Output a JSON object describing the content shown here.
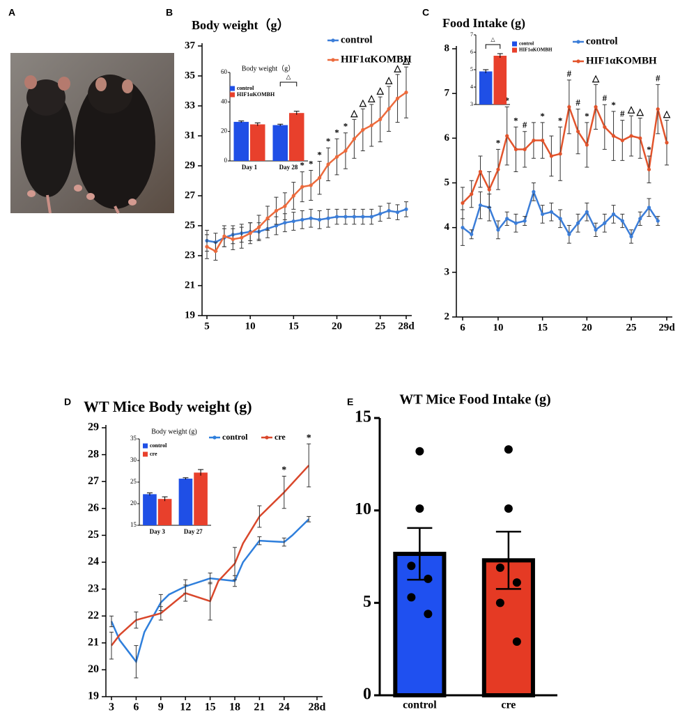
{
  "panel_a": {
    "label": "A"
  },
  "chart_data": [
    {
      "type": "line",
      "panel": "B",
      "title": "Body weight（g）",
      "markers": true,
      "x": [
        5,
        6,
        7,
        8,
        9,
        10,
        11,
        12,
        13,
        14,
        15,
        16,
        17,
        18,
        19,
        20,
        21,
        22,
        23,
        24,
        25,
        26,
        27,
        28
      ],
      "xlim": [
        5,
        28
      ],
      "xticks": [
        5,
        10,
        15,
        20,
        25,
        {
          "value": 28,
          "label": "28d"
        }
      ],
      "ylim": [
        19,
        37
      ],
      "yticks": [
        19,
        21,
        23,
        25,
        27,
        29,
        31,
        33,
        35,
        37
      ],
      "series": [
        {
          "name": "control",
          "color": "#3b7dd8",
          "values": [
            24.0,
            23.9,
            24.2,
            24.4,
            24.5,
            24.6,
            24.6,
            24.8,
            25.0,
            25.2,
            25.3,
            25.4,
            25.5,
            25.4,
            25.5,
            25.6,
            25.6,
            25.6,
            25.6,
            25.6,
            25.8,
            26.0,
            25.9,
            26.1
          ],
          "errors": [
            0.7,
            0.6,
            0.6,
            0.6,
            0.6,
            0.6,
            0.6,
            0.6,
            0.6,
            0.6,
            0.6,
            0.6,
            0.6,
            0.6,
            0.6,
            0.5,
            0.5,
            0.5,
            0.5,
            0.5,
            0.5,
            0.5,
            0.5,
            0.5
          ]
        },
        {
          "name": "HIF1αKOMBH",
          "color": "#ec6a3c",
          "values": [
            23.6,
            23.3,
            24.3,
            24.1,
            24.2,
            24.5,
            24.9,
            25.5,
            26.0,
            26.3,
            27.0,
            27.6,
            27.7,
            28.2,
            29.1,
            29.6,
            30.0,
            30.8,
            31.4,
            31.7,
            32.1,
            32.8,
            33.5,
            33.9
          ],
          "errors": [
            0.8,
            0.6,
            0.7,
            0.7,
            0.7,
            0.7,
            0.8,
            0.8,
            0.9,
            0.9,
            0.9,
            1.0,
            1.0,
            1.1,
            1.1,
            1.2,
            1.2,
            1.3,
            1.4,
            1.4,
            1.5,
            1.5,
            1.6,
            1.7
          ]
        }
      ],
      "annotations": [
        {
          "x": 16,
          "text": "*",
          "series": 1
        },
        {
          "x": 17,
          "text": "*",
          "series": 1
        },
        {
          "x": 18,
          "text": "*",
          "series": 1
        },
        {
          "x": 19,
          "text": "*",
          "series": 1
        },
        {
          "x": 20,
          "text": "*",
          "series": 1
        },
        {
          "x": 21,
          "text": "*",
          "series": 1
        },
        {
          "x": 22,
          "text": "△",
          "series": 1
        },
        {
          "x": 23,
          "text": "△",
          "series": 1
        },
        {
          "x": 24,
          "text": "△",
          "series": 1
        },
        {
          "x": 25,
          "text": "△",
          "series": 1
        },
        {
          "x": 26,
          "text": "△",
          "series": 1
        },
        {
          "x": 27,
          "text": "△",
          "series": 1
        },
        {
          "x": 28,
          "text": "△",
          "series": 1
        }
      ],
      "inset": {
        "type": "bar",
        "title": "Body weight（g）",
        "categories": [
          "Day 1",
          "Day 28"
        ],
        "ylim": [
          0,
          60
        ],
        "yticks": [
          0,
          20,
          40,
          60
        ],
        "series": [
          {
            "name": "control",
            "color": "#1f4fe6",
            "values": [
              26.5,
              24.3
            ],
            "errors": [
              0.6,
              0.6
            ]
          },
          {
            "name": "HIF1αKOMBH",
            "color": "#e8402c",
            "values": [
              24.8,
              32.5
            ],
            "errors": [
              1.0,
              1.2
            ]
          }
        ],
        "annotations": [
          {
            "text": "△",
            "category": 1
          }
        ]
      }
    },
    {
      "type": "line",
      "panel": "C",
      "title": "Food Intake (g)",
      "markers": true,
      "x": [
        6,
        7,
        8,
        9,
        10,
        11,
        12,
        13,
        14,
        15,
        16,
        17,
        18,
        19,
        20,
        21,
        22,
        23,
        24,
        25,
        26,
        27,
        28,
        29
      ],
      "xlim": [
        6,
        29
      ],
      "xticks": [
        6,
        10,
        15,
        20,
        25,
        {
          "value": 29,
          "label": "29d"
        }
      ],
      "ylim": [
        2,
        8
      ],
      "yticks": [
        2,
        3,
        4,
        5,
        6,
        7,
        8
      ],
      "series": [
        {
          "name": "control",
          "color": "#3b7dd8",
          "values": [
            4.0,
            3.85,
            4.5,
            4.45,
            3.95,
            4.2,
            4.1,
            4.15,
            4.8,
            4.3,
            4.35,
            4.2,
            3.85,
            4.1,
            4.35,
            3.95,
            4.1,
            4.3,
            4.15,
            3.8,
            4.2,
            4.45,
            4.15,
            null
          ],
          "errors": [
            0.4,
            0.1,
            0.3,
            0.3,
            0.2,
            0.15,
            0.2,
            0.1,
            0.2,
            0.2,
            0.2,
            0.2,
            0.2,
            0.2,
            0.2,
            0.15,
            0.2,
            0.2,
            0.15,
            0.15,
            0.15,
            0.2,
            0.1,
            null
          ]
        },
        {
          "name": "HIF1αKOMBH",
          "color": "#e2542c",
          "values": [
            4.55,
            4.75,
            5.25,
            4.85,
            5.3,
            6.05,
            5.75,
            5.75,
            5.95,
            5.95,
            5.6,
            5.65,
            6.7,
            6.15,
            5.85,
            6.7,
            6.25,
            6.05,
            5.95,
            6.05,
            6.0,
            5.3,
            6.65,
            5.9
          ],
          "errors": [
            0.35,
            0.3,
            0.35,
            0.4,
            0.45,
            0.65,
            0.5,
            0.4,
            0.4,
            0.4,
            0.45,
            0.6,
            0.6,
            0.5,
            0.5,
            0.5,
            0.5,
            0.55,
            0.45,
            0.45,
            0.45,
            0.3,
            0.55,
            0.5
          ]
        }
      ],
      "annotations": [
        {
          "x": 10,
          "text": "*",
          "series": 1
        },
        {
          "x": 11,
          "text": "*",
          "series": 1
        },
        {
          "x": 12,
          "text": "*",
          "series": 1
        },
        {
          "x": 13,
          "text": "#",
          "series": 1
        },
        {
          "x": 15,
          "text": "*",
          "series": 1
        },
        {
          "x": 17,
          "text": "*",
          "series": 1
        },
        {
          "x": 18,
          "text": "#",
          "series": 1
        },
        {
          "x": 19,
          "text": "#",
          "series": 1
        },
        {
          "x": 20,
          "text": "*",
          "series": 1
        },
        {
          "x": 21,
          "text": "△",
          "series": 1
        },
        {
          "x": 22,
          "text": "#",
          "series": 1
        },
        {
          "x": 23,
          "text": "*",
          "series": 1
        },
        {
          "x": 24,
          "text": "#",
          "series": 1
        },
        {
          "x": 25,
          "text": "△",
          "series": 1
        },
        {
          "x": 26,
          "text": "△",
          "series": 1
        },
        {
          "x": 27,
          "text": "*",
          "series": 1
        },
        {
          "x": 28,
          "text": "#",
          "series": 1
        },
        {
          "x": 29,
          "text": "△",
          "series": 1
        }
      ],
      "inset": {
        "type": "bar",
        "ylim": [
          3,
          7
        ],
        "yticks": [
          3,
          4,
          5,
          6,
          7
        ],
        "series": [
          {
            "name": "control",
            "color": "#1f4fe6",
            "values": [
              4.9
            ],
            "errors": [
              0.1
            ]
          },
          {
            "name": "HIF1αKOMBH",
            "color": "#e8402c",
            "values": [
              5.8
            ],
            "errors": [
              0.12
            ]
          }
        ],
        "annotations": [
          {
            "text": "△",
            "category": 0
          }
        ]
      }
    },
    {
      "type": "line",
      "panel": "D",
      "title": "WT Mice Body weight (g)",
      "markers": false,
      "xlim": [
        3,
        28
      ],
      "xticks": [
        3,
        6,
        9,
        12,
        15,
        18,
        21,
        24,
        {
          "value": 28,
          "label": "28d"
        }
      ],
      "ylim": [
        19,
        29
      ],
      "yticks": [
        19,
        20,
        21,
        22,
        23,
        24,
        25,
        26,
        27,
        28,
        29
      ],
      "series": [
        {
          "name": "control",
          "color": "#2f7fdc",
          "x": [
            3,
            4,
            6,
            7,
            9,
            10,
            12,
            15,
            18,
            19,
            21,
            24,
            25,
            27
          ],
          "values": [
            21.8,
            21.1,
            20.3,
            21.4,
            22.5,
            22.8,
            23.1,
            23.4,
            23.3,
            24.0,
            24.8,
            24.75,
            25.0,
            25.6
          ],
          "errors": [
            0.2,
            null,
            0.6,
            null,
            0.3,
            null,
            0.25,
            0.2,
            0.2,
            null,
            0.15,
            0.15,
            null,
            0.1
          ]
        },
        {
          "name": "cre",
          "color": "#d9472b",
          "x": [
            3,
            4,
            6,
            9,
            12,
            15,
            16,
            18,
            19,
            21,
            22,
            24,
            27
          ],
          "values": [
            20.9,
            21.3,
            21.85,
            22.1,
            22.85,
            22.55,
            23.3,
            23.95,
            24.7,
            25.7,
            26.0,
            26.6,
            27.6
          ],
          "errors": [
            0.5,
            null,
            0.3,
            0.25,
            0.3,
            0.7,
            null,
            0.6,
            null,
            0.4,
            null,
            0.6,
            0.8
          ]
        }
      ],
      "annotations": [
        {
          "x": 24,
          "text": "*",
          "series": 1
        },
        {
          "x": 27,
          "text": "*",
          "series": 1
        }
      ],
      "inset": {
        "type": "bar",
        "title": "Body weight (g)",
        "categories": [
          "Day 3",
          "Day 27"
        ],
        "ylim": [
          15,
          35
        ],
        "yticks": [
          15,
          20,
          25,
          30,
          35
        ],
        "series": [
          {
            "name": "control",
            "color": "#1f4fe6",
            "values": [
              22.2,
              25.8
            ],
            "errors": [
              0.3,
              0.2
            ]
          },
          {
            "name": "cre",
            "color": "#e8402c",
            "values": [
              21.1,
              27.2
            ],
            "errors": [
              0.5,
              0.7
            ]
          }
        ]
      }
    },
    {
      "type": "bar",
      "panel": "E",
      "title": "WT Mice  Food Intake (g)",
      "categories": [
        "control",
        "cre"
      ],
      "values": [
        7.65,
        7.3
      ],
      "errors": [
        1.4,
        1.55
      ],
      "colors": [
        "#1f50f0",
        "#e53a24"
      ],
      "points": [
        [
          13.2,
          10.1,
          7.0,
          6.3,
          5.3,
          4.4
        ],
        [
          13.3,
          10.1,
          6.9,
          6.1,
          5.0,
          2.9
        ]
      ],
      "ylim": [
        0,
        15
      ],
      "yticks": [
        0,
        5,
        10,
        15
      ]
    }
  ]
}
